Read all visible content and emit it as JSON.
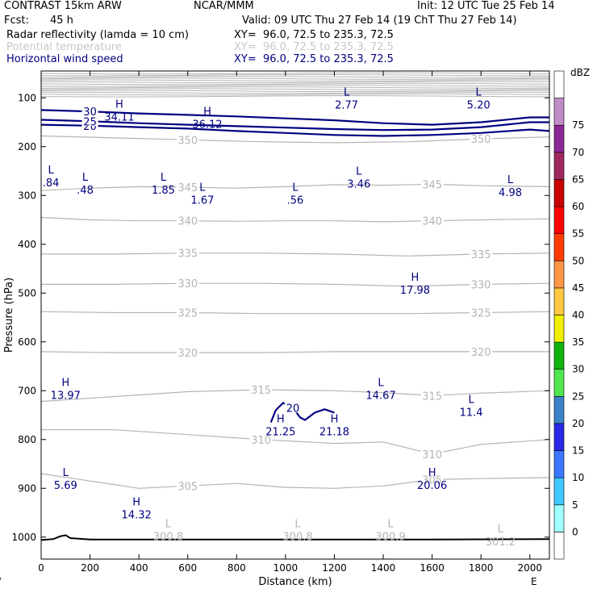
{
  "header": {
    "model": "CONTRAST 15km ARW",
    "center": "NCAR/MMM",
    "init": "Init: 12 UTC Tue 25 Feb 14",
    "fcst_label": "Fcst:",
    "fcst_value": "45 h",
    "valid": "Valid: 09 UTC Thu 27 Feb 14 (19 ChT Thu 27 Feb 14)",
    "fields": [
      {
        "name": "Radar reflectivity (lamda = 10 cm)",
        "xy": "XY=  96.0, 72.5 to 235.3, 72.5",
        "color": "#000000"
      },
      {
        "name": "Potential temperature",
        "xy": "XY=  96.0, 72.5 to 235.3, 72.5",
        "color": "#c8c8c8"
      },
      {
        "name": "Horizontal wind speed",
        "xy": "XY=  96.0, 72.5 to 235.3, 72.5",
        "color": "#000080"
      }
    ]
  },
  "colors": {
    "theta": "#b4b4b4",
    "wind": "#000080",
    "terrain": "#000000"
  },
  "chart_data": {
    "type": "cross-section",
    "xlabel": "Distance (km)",
    "ylabel": "Pressure (hPa)",
    "xlim": [
      0,
      2080
    ],
    "ylim": [
      1045,
      45
    ],
    "x_ticks": [
      0,
      200,
      400,
      600,
      800,
      1000,
      1200,
      1400,
      1600,
      1800,
      2000
    ],
    "y_ticks": [
      100,
      200,
      300,
      400,
      500,
      600,
      700,
      800,
      900,
      1000
    ],
    "x_end_labels": {
      "left": "W",
      "right": "E"
    },
    "colorbar": {
      "unit": "dBZ",
      "levels": [
        "0",
        "5",
        "10",
        "15",
        "20",
        "25",
        "30",
        "35",
        "40",
        "45",
        "50",
        "55",
        "60",
        "65",
        "70",
        "75"
      ],
      "colors": [
        "#ffffff",
        "#a0ffff",
        "#40c8ff",
        "#3c78ff",
        "#2828e6",
        "#3c82c8",
        "#50e650",
        "#10b410",
        "#f0f000",
        "#ffc840",
        "#ff9646",
        "#ff3c00",
        "#ff0000",
        "#c80000",
        "#a02860",
        "#8c2896",
        "#c08cc8",
        "#ffffff"
      ]
    },
    "theta_contours": [
      {
        "label": "350",
        "points": [
          [
            0,
            178
          ],
          [
            300,
            182
          ],
          [
            600,
            186
          ],
          [
            900,
            190
          ],
          [
            1200,
            192
          ],
          [
            1500,
            190
          ],
          [
            1800,
            184
          ],
          [
            2080,
            180
          ]
        ]
      },
      {
        "label": "345",
        "points": [
          [
            0,
            290
          ],
          [
            200,
            285
          ],
          [
            400,
            282
          ],
          [
            600,
            283
          ],
          [
            800,
            285
          ],
          [
            1000,
            282
          ],
          [
            1200,
            278
          ],
          [
            1400,
            279
          ],
          [
            1600,
            277
          ],
          [
            1800,
            280
          ],
          [
            2080,
            282
          ]
        ]
      },
      {
        "label": "340",
        "points": [
          [
            0,
            345
          ],
          [
            200,
            350
          ],
          [
            400,
            352
          ],
          [
            600,
            352
          ],
          [
            800,
            353
          ],
          [
            1000,
            352
          ],
          [
            1200,
            352
          ],
          [
            1400,
            354
          ],
          [
            1600,
            352
          ],
          [
            1800,
            350
          ],
          [
            2080,
            348
          ]
        ]
      },
      {
        "label": "335",
        "points": [
          [
            0,
            420
          ],
          [
            300,
            420
          ],
          [
            600,
            418
          ],
          [
            900,
            418
          ],
          [
            1200,
            420
          ],
          [
            1500,
            424
          ],
          [
            1800,
            420
          ],
          [
            2080,
            418
          ]
        ]
      },
      {
        "label": "330",
        "points": [
          [
            0,
            482
          ],
          [
            300,
            482
          ],
          [
            600,
            480
          ],
          [
            900,
            480
          ],
          [
            1200,
            482
          ],
          [
            1500,
            486
          ],
          [
            1800,
            482
          ],
          [
            2080,
            480
          ]
        ]
      },
      {
        "label": "325",
        "points": [
          [
            0,
            538
          ],
          [
            300,
            540
          ],
          [
            600,
            540
          ],
          [
            900,
            542
          ],
          [
            1200,
            542
          ],
          [
            1500,
            542
          ],
          [
            1800,
            540
          ],
          [
            2080,
            538
          ]
        ]
      },
      {
        "label": "320",
        "points": [
          [
            0,
            620
          ],
          [
            300,
            622
          ],
          [
            600,
            622
          ],
          [
            900,
            622
          ],
          [
            1200,
            620
          ],
          [
            1500,
            620
          ],
          [
            1800,
            620
          ],
          [
            2080,
            620
          ]
        ]
      },
      {
        "label": "315",
        "points": [
          [
            0,
            722
          ],
          [
            300,
            712
          ],
          [
            600,
            702
          ],
          [
            900,
            698
          ],
          [
            1200,
            700
          ],
          [
            1400,
            704
          ],
          [
            1600,
            710
          ],
          [
            1800,
            705
          ],
          [
            2080,
            700
          ]
        ]
      },
      {
        "label": "310",
        "points": [
          [
            0,
            780
          ],
          [
            300,
            780
          ],
          [
            600,
            790
          ],
          [
            900,
            800
          ],
          [
            1200,
            808
          ],
          [
            1400,
            805
          ],
          [
            1600,
            830
          ],
          [
            1800,
            810
          ],
          [
            2080,
            800
          ]
        ]
      },
      {
        "label": "305",
        "points": [
          [
            0,
            870
          ],
          [
            200,
            885
          ],
          [
            400,
            900
          ],
          [
            600,
            895
          ],
          [
            800,
            890
          ],
          [
            1000,
            898
          ],
          [
            1200,
            900
          ],
          [
            1400,
            895
          ],
          [
            1600,
            882
          ],
          [
            1800,
            880
          ],
          [
            2080,
            878
          ]
        ]
      }
    ],
    "wind_contours": [
      {
        "label": "20",
        "points": [
          [
            0,
            155
          ],
          [
            200,
            157
          ],
          [
            400,
            160
          ],
          [
            600,
            163
          ],
          [
            800,
            168
          ],
          [
            1000,
            172
          ],
          [
            1200,
            176
          ],
          [
            1400,
            178
          ],
          [
            1600,
            176
          ],
          [
            1800,
            172
          ],
          [
            2000,
            165
          ],
          [
            2080,
            168
          ]
        ]
      },
      {
        "label": "25",
        "points": [
          [
            0,
            145
          ],
          [
            200,
            148
          ],
          [
            400,
            152
          ],
          [
            600,
            155
          ],
          [
            800,
            158
          ],
          [
            1000,
            161
          ],
          [
            1200,
            164
          ],
          [
            1400,
            166
          ],
          [
            1600,
            165
          ],
          [
            1800,
            160
          ],
          [
            2000,
            150
          ],
          [
            2080,
            150
          ]
        ]
      },
      {
        "label": "30",
        "points": [
          [
            0,
            125
          ],
          [
            200,
            128
          ],
          [
            400,
            132
          ],
          [
            600,
            135
          ],
          [
            800,
            138
          ],
          [
            1000,
            142
          ],
          [
            1200,
            146
          ],
          [
            1400,
            152
          ],
          [
            1600,
            155
          ],
          [
            1800,
            150
          ],
          [
            2000,
            140
          ],
          [
            2080,
            140
          ]
        ]
      },
      {
        "label": "20",
        "points": [
          [
            940,
            765
          ],
          [
            960,
            740
          ],
          [
            990,
            725
          ],
          [
            1030,
            735
          ],
          [
            1060,
            755
          ],
          [
            1080,
            760
          ],
          [
            1120,
            745
          ],
          [
            1160,
            738
          ],
          [
            1200,
            745
          ]
        ]
      }
    ],
    "extrema": [
      {
        "kind": "L",
        "value": "2.77",
        "x": 1250,
        "p": 100
      },
      {
        "kind": "L",
        "value": "5.20",
        "x": 1790,
        "p": 100
      },
      {
        "kind": "H",
        "value": "34.11",
        "x": 320,
        "p": 125
      },
      {
        "kind": "H",
        "value": "36.12",
        "x": 680,
        "p": 140
      },
      {
        "kind": "L",
        "value": ".84",
        "x": 40,
        "p": 260
      },
      {
        "kind": "L",
        "value": ".48",
        "x": 180,
        "p": 275
      },
      {
        "kind": "L",
        "value": "1.85",
        "x": 500,
        "p": 275
      },
      {
        "kind": "L",
        "value": "1.67",
        "x": 660,
        "p": 295
      },
      {
        "kind": "L",
        "value": ".56",
        "x": 1040,
        "p": 295
      },
      {
        "kind": "L",
        "value": "3.46",
        "x": 1300,
        "p": 262
      },
      {
        "kind": "L",
        "value": "4.98",
        "x": 1920,
        "p": 280
      },
      {
        "kind": "H",
        "value": "17.98",
        "x": 1530,
        "p": 480
      },
      {
        "kind": "H",
        "value": "13.97",
        "x": 100,
        "p": 695
      },
      {
        "kind": "L",
        "value": "14.67",
        "x": 1390,
        "p": 695
      },
      {
        "kind": "L",
        "value": "11.4",
        "x": 1760,
        "p": 730
      },
      {
        "kind": "H",
        "value": "21.25",
        "x": 980,
        "p": 770
      },
      {
        "kind": "H",
        "value": "21.18",
        "x": 1200,
        "p": 770
      },
      {
        "kind": "H",
        "value": "20.06",
        "x": 1600,
        "p": 880
      },
      {
        "kind": "L",
        "value": "5.69",
        "x": 100,
        "p": 880
      },
      {
        "kind": "H",
        "value": "14.32",
        "x": 390,
        "p": 940
      },
      {
        "kind": "L",
        "value": "300.8",
        "x": 520,
        "p": 985,
        "theta": true
      },
      {
        "kind": "L",
        "value": "300.8",
        "x": 1050,
        "p": 985,
        "theta": true
      },
      {
        "kind": "L",
        "value": "300.9",
        "x": 1430,
        "p": 985,
        "theta": true
      },
      {
        "kind": "L",
        "value": "301.2",
        "x": 1880,
        "p": 995,
        "theta": true
      }
    ],
    "terrain": [
      [
        0,
        1006
      ],
      [
        50,
        1004
      ],
      [
        80,
        998
      ],
      [
        100,
        996
      ],
      [
        120,
        1002
      ],
      [
        200,
        1005
      ],
      [
        600,
        1005
      ],
      [
        1000,
        1005
      ],
      [
        1600,
        1005
      ],
      [
        2080,
        1004
      ]
    ]
  }
}
